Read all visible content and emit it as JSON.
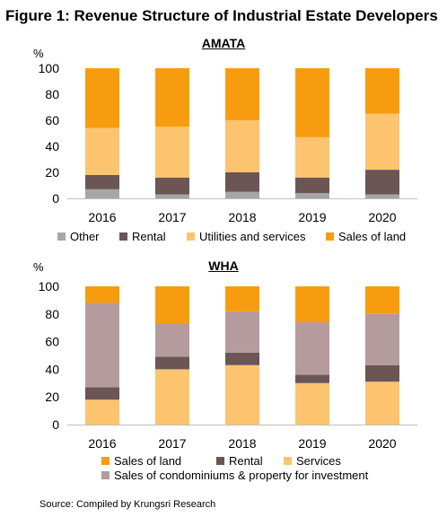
{
  "figure_title": "Figure 1: Revenue Structure of Industrial Estate Developers",
  "source": "Source: Compiled by Krungsri Research",
  "colors": {
    "Other": "#a6a6a6",
    "Rental": "#6b5655",
    "Utilities and services": "#fcc46f",
    "Services": "#fcc46f",
    "Sales of land": "#f89c0f",
    "Sales of condominiums & property for investment": "#b59b9e"
  },
  "chart_data": [
    {
      "type": "bar",
      "stacked": true,
      "title": "AMATA",
      "ylabel": "%",
      "ylim": [
        0,
        100
      ],
      "yticks": [
        "0",
        "20",
        "40",
        "60",
        "80",
        "100"
      ],
      "categories": [
        "2016",
        "2017",
        "2018",
        "2019",
        "2020"
      ],
      "legend": [
        "Other",
        "Rental",
        "Utilities and services",
        "Sales of land"
      ],
      "series": [
        {
          "name": "Other",
          "values": [
            7,
            3,
            5,
            4,
            3
          ]
        },
        {
          "name": "Rental",
          "values": [
            11,
            13,
            15,
            12,
            19
          ]
        },
        {
          "name": "Utilities and services",
          "values": [
            36,
            39,
            40,
            31,
            43
          ]
        },
        {
          "name": "Sales of land",
          "values": [
            46,
            45,
            40,
            53,
            35
          ]
        }
      ]
    },
    {
      "type": "bar",
      "stacked": true,
      "title": "WHA",
      "ylabel": "%",
      "ylim": [
        0,
        100
      ],
      "yticks": [
        "0",
        "20",
        "40",
        "60",
        "80",
        "100"
      ],
      "categories": [
        "2016",
        "2017",
        "2018",
        "2019",
        "2020"
      ],
      "legend": [
        "Sales of land",
        "Rental",
        "Services",
        "Sales of condominiums & property for investment"
      ],
      "series": [
        {
          "name": "Services",
          "values": [
            18,
            40,
            43,
            30,
            31
          ]
        },
        {
          "name": "Rental",
          "values": [
            9,
            9,
            9,
            6,
            12
          ]
        },
        {
          "name": "Sales of condominiums & property for investment",
          "values": [
            61,
            24,
            30,
            38,
            37
          ]
        },
        {
          "name": "Sales of land",
          "values": [
            12,
            27,
            18,
            26,
            20
          ]
        }
      ]
    }
  ]
}
